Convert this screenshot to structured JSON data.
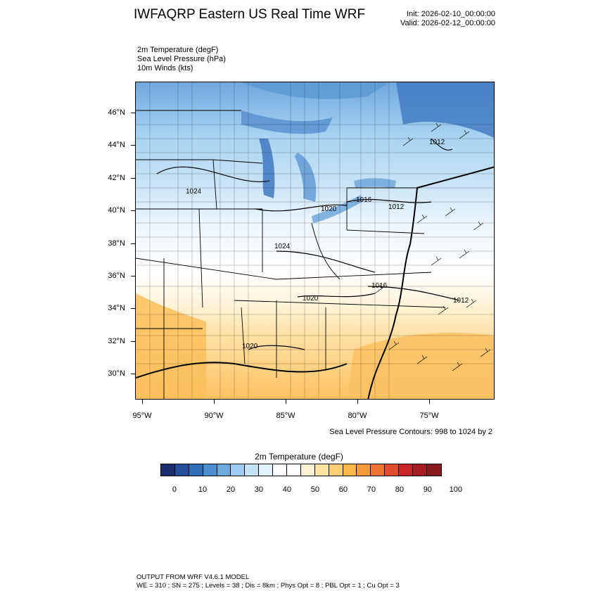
{
  "header": {
    "title": "IWFAQRP Eastern US Real Time WRF",
    "init": "Init: 2026-02-10_00:00:00",
    "valid": "Valid: 2026-02-12_00:00:00"
  },
  "variables": [
    "2m Temperature   (degF)",
    "Sea Level Pressure   (hPa)",
    "10m Winds   (kts)"
  ],
  "map": {
    "lat_labels": [
      "46°N",
      "44°N",
      "42°N",
      "40°N",
      "38°N",
      "36°N",
      "34°N",
      "32°N",
      "30°N"
    ],
    "lon_labels": [
      "95°W",
      "90°W",
      "85°W",
      "80°W",
      "75°W"
    ],
    "pressure_labels": [
      "1024",
      "1020",
      "1016",
      "1012",
      "1024",
      "1016",
      "1020",
      "1012",
      "1020",
      "1012"
    ],
    "slp_note": "Sea Level Pressure Contours: 998 to 1024 by 2"
  },
  "colorbar": {
    "title": "2m Temperature  (degF)",
    "labels": [
      "0",
      "10",
      "20",
      "30",
      "40",
      "50",
      "60",
      "70",
      "80",
      "90",
      "100"
    ],
    "colors": [
      "#1a2f6b",
      "#234f98",
      "#2e6fb9",
      "#4b8fd0",
      "#6cabe0",
      "#9ccdf0",
      "#c4e3f6",
      "#e2f1fb",
      "#ffffff",
      "#ffffff",
      "#fff4d2",
      "#fde5a0",
      "#fdd171",
      "#fcb847",
      "#f59a3c",
      "#ee7433",
      "#e04e2d",
      "#c82729",
      "#a81d22",
      "#8a1b1e"
    ]
  },
  "footer": {
    "line1": "OUTPUT FROM WRF V4.6.1 MODEL",
    "line2": "WE = 310 ; SN = 275 ; Levels = 38 ; Dis = 8km ; Phys Opt = 8 ; PBL Opt = 1 ; Cu Opt = 3"
  }
}
